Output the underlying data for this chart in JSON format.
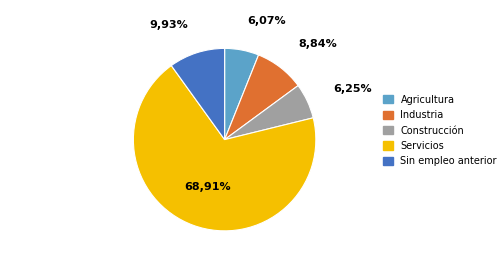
{
  "labels": [
    "Agricultura",
    "Industria",
    "Construcción",
    "Servicios",
    "Sin empleo anterior"
  ],
  "values": [
    6.07,
    8.84,
    6.25,
    68.91,
    9.93
  ],
  "colors": [
    "#5ba3c9",
    "#e07030",
    "#a0a0a0",
    "#f5c000",
    "#4472c4"
  ],
  "pct_labels": [
    "6,07%",
    "8,84%",
    "6,25%",
    "68,91%",
    "9,93%"
  ],
  "startangle": 90,
  "background_color": "#ffffff"
}
